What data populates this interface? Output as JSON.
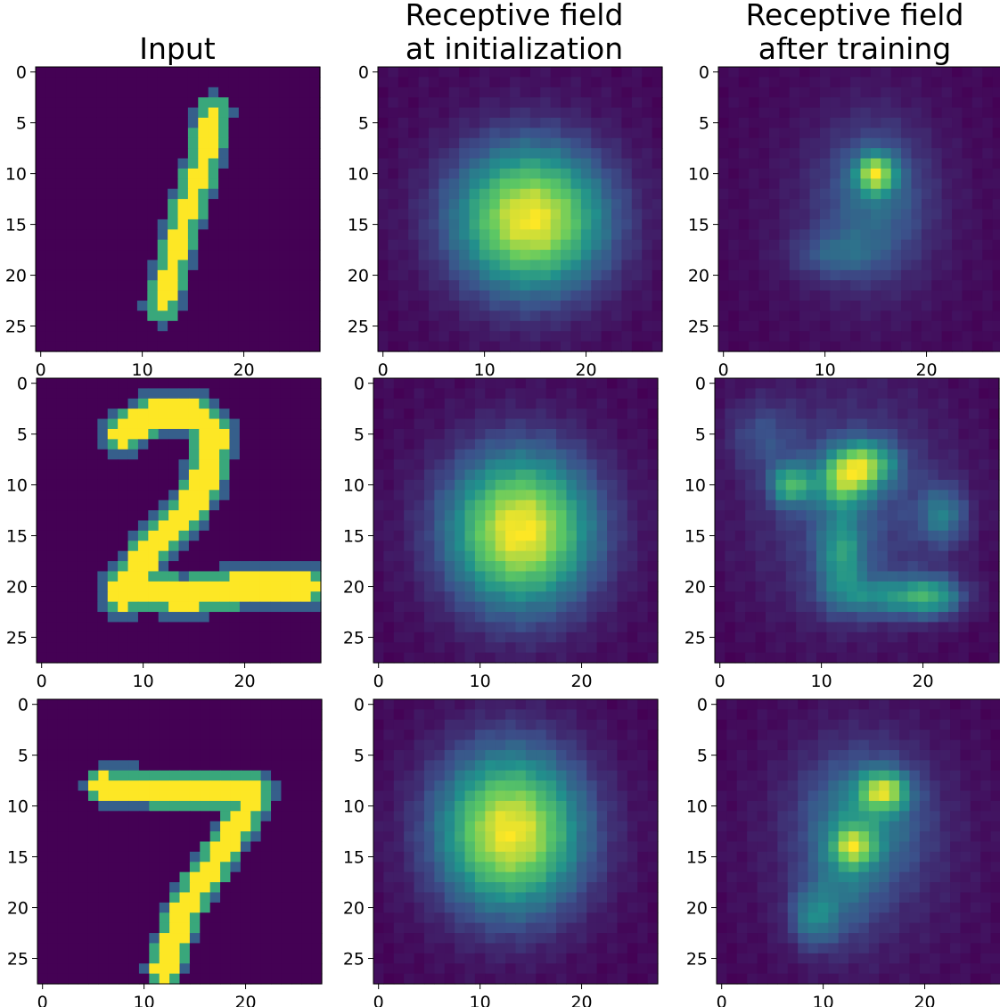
{
  "chart_data": {
    "type": "heatmap",
    "colormap": "viridis",
    "colormap_stops": [
      "#440154",
      "#3b528b",
      "#21918c",
      "#5ec962",
      "#fde725"
    ],
    "grid_size": 28,
    "xlim": [
      0,
      27
    ],
    "ylim": [
      27,
      0
    ],
    "x_ticks": [
      0,
      10,
      20
    ],
    "y_ticks": [
      0,
      5,
      10,
      15,
      20,
      25
    ],
    "column_titles": [
      [
        "Input"
      ],
      [
        "Receptive field",
        "at initialization"
      ],
      [
        "Receptive field",
        "after training"
      ]
    ],
    "rows": [
      {
        "digit": "1",
        "input": {
          "strokes": [
            [
              [
                17,
                4
              ],
              [
                16,
                9
              ],
              [
                14,
                15
              ],
              [
                12,
                23
              ]
            ]
          ],
          "width": 0.9
        },
        "init": {
          "blobs": [
            {
              "cx": 14.5,
              "cy": 14.5,
              "sx": 5.2,
              "sy": 5.0,
              "a": 1.0
            }
          ],
          "floor": 0.0
        },
        "trained": {
          "blobs": [
            {
              "cx": 15,
              "cy": 10,
              "sx": 1.3,
              "sy": 1.3,
              "a": 0.85
            },
            {
              "cx": 15,
              "cy": 12,
              "sx": 3.5,
              "sy": 5.0,
              "a": 0.3
            },
            {
              "cx": 11,
              "cy": 18,
              "sx": 3.0,
              "sy": 1.6,
              "a": 0.25
            },
            {
              "cx": 14,
              "cy": 14,
              "sx": 6.0,
              "sy": 7.0,
              "a": 0.15
            }
          ],
          "floor": 0.02
        }
      },
      {
        "digit": "2",
        "input": {
          "strokes": [
            [
              [
                8,
                5
              ],
              [
                11,
                3
              ],
              [
                15,
                3
              ],
              [
                17,
                5
              ],
              [
                16,
                10
              ],
              [
                14,
                13
              ],
              [
                11,
                16
              ],
              [
                9,
                19
              ],
              [
                8,
                21
              ]
            ],
            [
              [
                8,
                20
              ],
              [
                14,
                21
              ],
              [
                20,
                20
              ],
              [
                26,
                20
              ]
            ]
          ],
          "width": 1.2
        },
        "init": {
          "blobs": [
            {
              "cx": 14,
              "cy": 14.5,
              "sx": 5.0,
              "sy": 5.3,
              "a": 1.0
            }
          ],
          "floor": 0.0
        },
        "trained": {
          "blobs": [
            {
              "cx": 14,
              "cy": 8,
              "sx": 2.2,
              "sy": 1.6,
              "a": 0.7
            },
            {
              "cx": 7,
              "cy": 10,
              "sx": 1.4,
              "sy": 1.4,
              "a": 0.55
            },
            {
              "cx": 12,
              "cy": 10,
              "sx": 1.8,
              "sy": 1.6,
              "a": 0.45
            },
            {
              "cx": 12,
              "cy": 17,
              "sx": 1.6,
              "sy": 3.0,
              "a": 0.4
            },
            {
              "cx": 17,
              "cy": 21,
              "sx": 4.0,
              "sy": 1.4,
              "a": 0.4
            },
            {
              "cx": 22,
              "cy": 13,
              "sx": 1.6,
              "sy": 2.0,
              "a": 0.35
            },
            {
              "cx": 21,
              "cy": 21,
              "sx": 2.0,
              "sy": 1.4,
              "a": 0.35
            },
            {
              "cx": 13,
              "cy": 12,
              "sx": 7.0,
              "sy": 8.0,
              "a": 0.25
            },
            {
              "cx": 4,
              "cy": 5,
              "sx": 2.5,
              "sy": 2.5,
              "a": 0.18
            }
          ],
          "floor": 0.15
        }
      },
      {
        "digit": "7",
        "input": {
          "strokes": [
            [
              [
                6,
                8
              ],
              [
                14,
                8.5
              ],
              [
                21,
                8.5
              ]
            ],
            [
              [
                21,
                8.5
              ],
              [
                18,
                14
              ],
              [
                14,
                20
              ],
              [
                12,
                26
              ]
            ]
          ],
          "width": 1.0
        },
        "init": {
          "blobs": [
            {
              "cx": 13,
              "cy": 12.5,
              "sx": 5.0,
              "sy": 5.5,
              "a": 1.0
            }
          ],
          "floor": 0.0
        },
        "trained": {
          "blobs": [
            {
              "cx": 16,
              "cy": 8.5,
              "sx": 1.6,
              "sy": 1.3,
              "a": 0.7
            },
            {
              "cx": 13,
              "cy": 14,
              "sx": 1.4,
              "sy": 1.3,
              "a": 0.55
            },
            {
              "cx": 14,
              "cy": 11,
              "sx": 4.0,
              "sy": 4.5,
              "a": 0.35
            },
            {
              "cx": 9,
              "cy": 21,
              "sx": 1.6,
              "sy": 2.0,
              "a": 0.35
            },
            {
              "cx": 12,
              "cy": 18,
              "sx": 2.5,
              "sy": 4.0,
              "a": 0.2
            },
            {
              "cx": 14,
              "cy": 14,
              "sx": 7.0,
              "sy": 8.0,
              "a": 0.15
            }
          ],
          "floor": 0.04
        }
      }
    ]
  }
}
